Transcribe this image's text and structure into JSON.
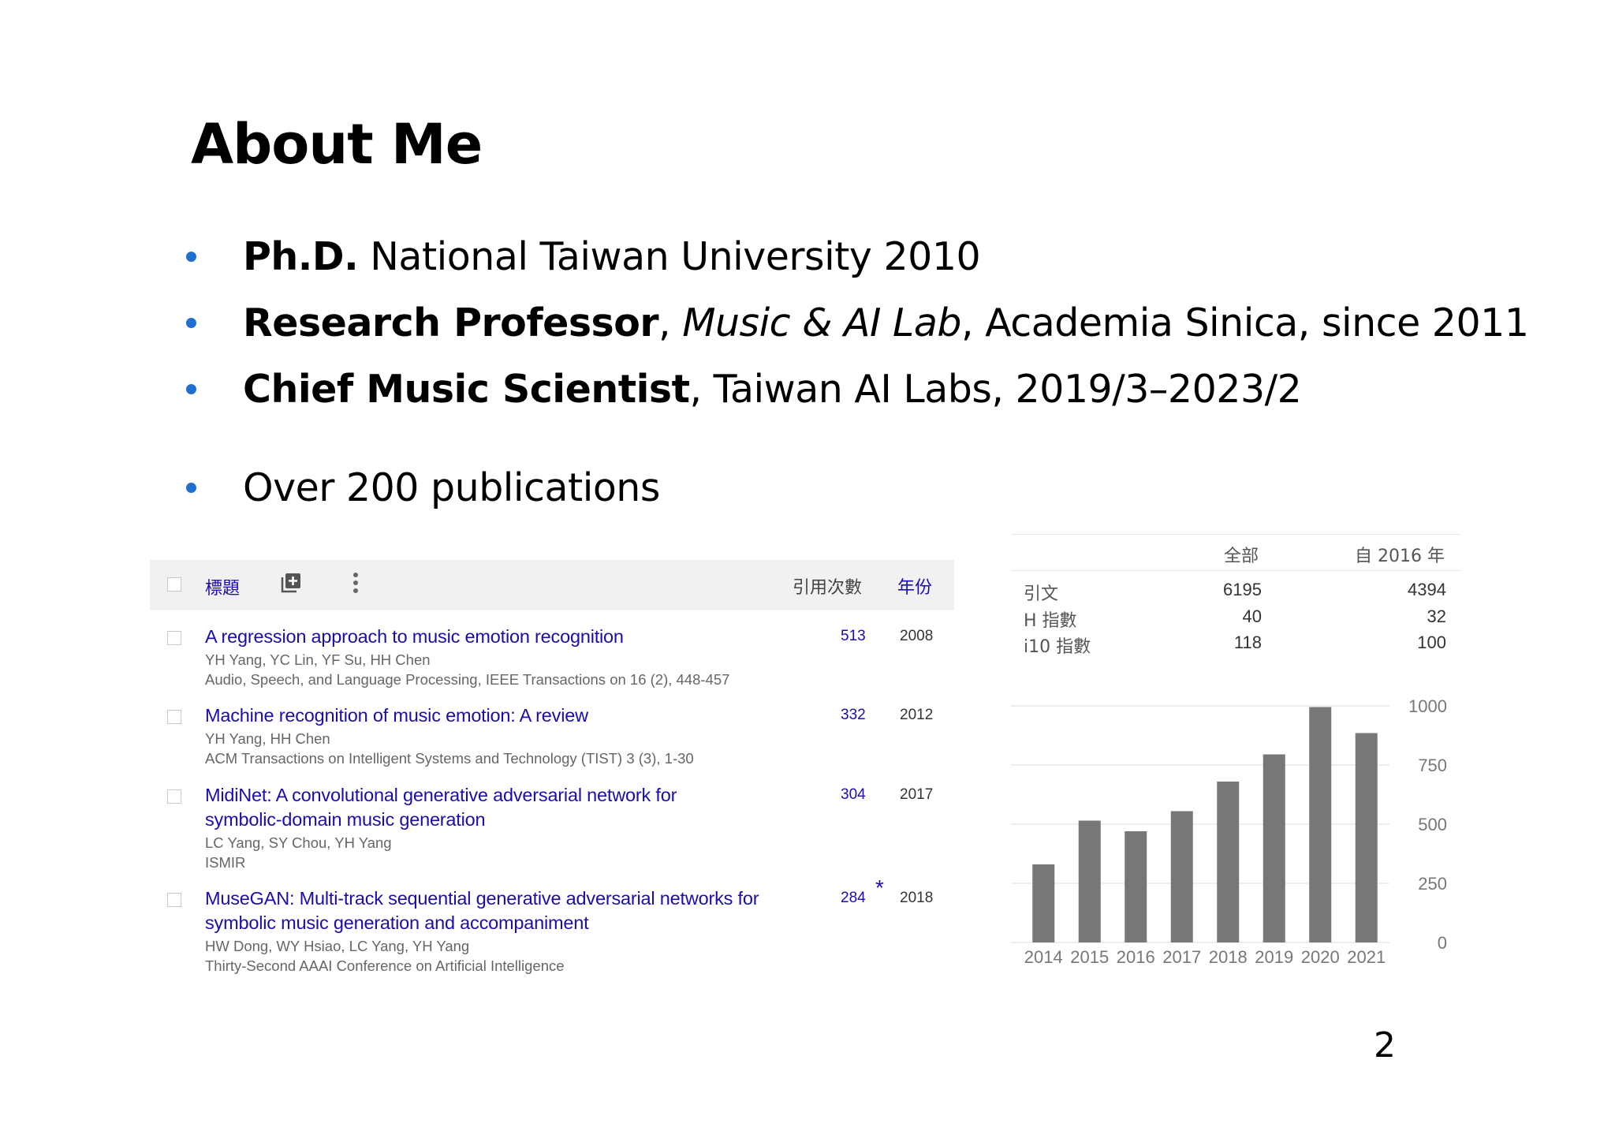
{
  "slide": {
    "title": "About Me",
    "page_number": "2"
  },
  "bullets": [
    {
      "bold": "Ph.D.",
      "rest": " National Taiwan University 2010"
    },
    {
      "bold": "Research Professor",
      "sep": ", ",
      "italic": "Music & AI Lab",
      "rest": ", Academia Sinica, since 2011"
    },
    {
      "bold": "Chief Music Scientist",
      "rest": ", Taiwan AI Labs, 2019/3–2023/2"
    },
    {
      "plain": "Over 200 publications"
    }
  ],
  "accent_color": "#1f6fd1",
  "scholar": {
    "header": {
      "title_col": "標題",
      "add_icon": "add-to-library-icon",
      "more_icon": "more-vert-icon",
      "cited_col": "引用次數",
      "year_col": "年份"
    },
    "link_color": "#1a0dab",
    "publications": [
      {
        "title": "A regression approach to music emotion recognition",
        "authors": "YH Yang, YC Lin, YF Su, HH Chen",
        "venue": "Audio, Speech, and Language Processing, IEEE Transactions on 16 (2), 448-457",
        "cited_by": "513",
        "year": "2008"
      },
      {
        "title": "Machine recognition of music emotion: A review",
        "authors": "YH Yang, HH Chen",
        "venue": "ACM Transactions on Intelligent Systems and Technology (TIST) 3 (3), 1-30",
        "cited_by": "332",
        "year": "2012"
      },
      {
        "title": "MidiNet: A convolutional generative adversarial network for symbolic-domain music generation",
        "authors": "LC Yang, SY Chou, YH Yang",
        "venue": "ISMIR",
        "cited_by": "304",
        "year": "2017"
      },
      {
        "title": "MuseGAN: Multi-track sequential generative adversarial networks for symbolic music generation and accompaniment",
        "authors": "HW Dong, WY Hsiao, LC Yang, YH Yang",
        "venue": "Thirty-Second AAAI Conference on Artificial Intelligence",
        "cited_by": "284",
        "star": "*",
        "year": "2018"
      }
    ]
  },
  "stats": {
    "col_all": "全部",
    "col_since": "自 2016 年",
    "rows": [
      {
        "label": "引文",
        "all": "6195",
        "since": "4394"
      },
      {
        "label": "H 指數",
        "all": "40",
        "since": "32"
      },
      {
        "label": "i10 指數",
        "all": "118",
        "since": "100"
      }
    ]
  },
  "chart_data": {
    "type": "bar",
    "categories": [
      "2014",
      "2015",
      "2016",
      "2017",
      "2018",
      "2019",
      "2020",
      "2021"
    ],
    "values": [
      330,
      515,
      470,
      555,
      680,
      795,
      995,
      885
    ],
    "yticks": [
      "0",
      "250",
      "500",
      "750",
      "1000"
    ],
    "ylim": [
      0,
      1000
    ],
    "bar_color": "#777777",
    "grid": true,
    "title": "",
    "xlabel": "",
    "ylabel": ""
  }
}
